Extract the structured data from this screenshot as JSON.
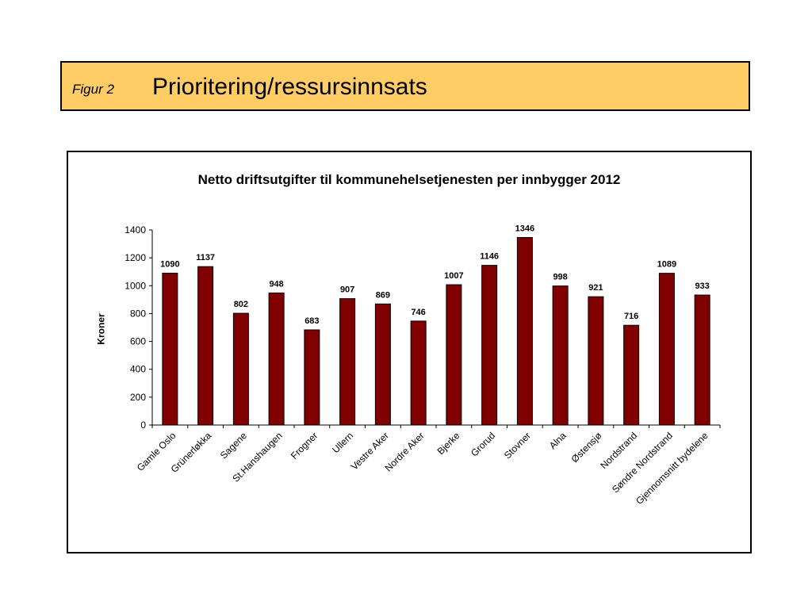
{
  "header": {
    "figure_label": "Figur 2",
    "title": "Prioritering/ressursinnsats"
  },
  "colors": {
    "header_bg": "#ffcc66",
    "bar_fill": "#800000"
  },
  "chart_data": {
    "type": "bar",
    "title": "Netto driftsutgifter til kommunehelsetjenesten per innbygger 2012",
    "xlabel": "",
    "ylabel": "Kroner",
    "ylim": [
      0,
      1400
    ],
    "yticks": [
      0,
      200,
      400,
      600,
      800,
      1000,
      1200,
      1400
    ],
    "grid": false,
    "legend": "none",
    "categories": [
      "Gamle Oslo",
      "Grünerløkka",
      "Sagene",
      "St.Hanshaugen",
      "Frogner",
      "Ullern",
      "Vestre Aker",
      "Nordre Aker",
      "Bjerke",
      "Grorud",
      "Stovner",
      "Alna",
      "Østensjø",
      "Nordstrand",
      "Søndre Nordstrand",
      "Gjennomsnitt bydelene"
    ],
    "values": [
      1090,
      1137,
      802,
      948,
      683,
      907,
      869,
      746,
      1007,
      1146,
      1346,
      998,
      921,
      716,
      1089,
      933
    ]
  }
}
